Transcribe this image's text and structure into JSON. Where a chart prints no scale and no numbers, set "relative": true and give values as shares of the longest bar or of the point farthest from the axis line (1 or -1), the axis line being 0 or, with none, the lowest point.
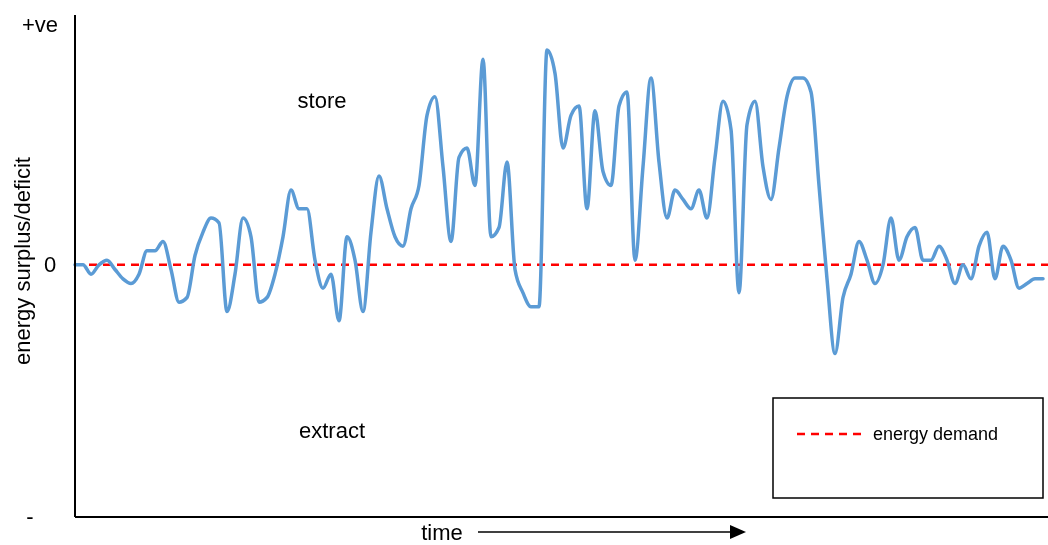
{
  "chart_data": {
    "type": "line",
    "xlabel": "time",
    "ylabel": "energy surplus/deficit",
    "relative": true,
    "legend": "bottom right",
    "annotations": [
      "+ve",
      "0",
      "-",
      "store",
      "extract"
    ],
    "categories": [
      null,
      null,
      null,
      null,
      null,
      null,
      null,
      null,
      null,
      null,
      null,
      null,
      null,
      null,
      null,
      null,
      null,
      null,
      null,
      null,
      null,
      null,
      null,
      null,
      null,
      null,
      null,
      null,
      null,
      null,
      null,
      null,
      null,
      null,
      null,
      null,
      null,
      null,
      null,
      null,
      null,
      null,
      null,
      null,
      null,
      null,
      null,
      null,
      null,
      null,
      null,
      null,
      null,
      null,
      null,
      null,
      null,
      null,
      null,
      null,
      null,
      null,
      null,
      null,
      null,
      null,
      null,
      null,
      null,
      null,
      null,
      null,
      null,
      null,
      null,
      null,
      null,
      null,
      null,
      null,
      null,
      null,
      null,
      null,
      null,
      null,
      null,
      null,
      null,
      null,
      null,
      null,
      null,
      null,
      null,
      null,
      null,
      null,
      null,
      null,
      null,
      null,
      null,
      null,
      null,
      null,
      null,
      null,
      null,
      null,
      null,
      null,
      null,
      null,
      null,
      null,
      null,
      null,
      null,
      null,
      null,
      null
    ],
    "series": [
      {
        "color": "#5b9bd5",
        "values": [
          0.54,
          0.54,
          0.52,
          0.54,
          0.55,
          0.53,
          0.51,
          0.5,
          0.52,
          0.57,
          0.57,
          0.59,
          0.53,
          0.46,
          0.47,
          0.56,
          0.61,
          0.64,
          0.63,
          0.44,
          0.52,
          0.64,
          0.6,
          0.46,
          0.47,
          0.52,
          0.6,
          0.7,
          0.66,
          0.66,
          0.55,
          0.49,
          0.52,
          0.42,
          0.6,
          0.55,
          0.44,
          0.61,
          0.73,
          0.66,
          0.6,
          0.58,
          0.66,
          0.71,
          0.86,
          0.9,
          0.75,
          0.59,
          0.77,
          0.79,
          0.71,
          0.98,
          0.6,
          0.62,
          0.76,
          0.53,
          0.48,
          0.45,
          0.45,
          1,
          0.95,
          0.79,
          0.86,
          0.88,
          0.66,
          0.87,
          0.74,
          0.71,
          0.88,
          0.91,
          0.55,
          0.75,
          0.94,
          0.76,
          0.64,
          0.7,
          0.68,
          0.66,
          0.7,
          0.64,
          0.77,
          0.89,
          0.83,
          0.48,
          0.84,
          0.89,
          0.75,
          0.68,
          0.79,
          0.9,
          0.94,
          0.94,
          0.91,
          0.71,
          0.51,
          0.35,
          0.47,
          0.52,
          0.59,
          0.55,
          0.5,
          0.54,
          0.64,
          0.55,
          0.6,
          0.62,
          0.55,
          0.55,
          0.58,
          0.55,
          0.5,
          0.54,
          0.51,
          0.58,
          0.61,
          0.51,
          0.58,
          0.55,
          0.49,
          0.5,
          0.51,
          0.51
        ]
      }
    ],
    "ref_lines": [
      {
        "axis": "y",
        "value": 0.54,
        "label": "energy demand",
        "color": "#ff0000",
        "line_style": "dashed"
      }
    ]
  }
}
